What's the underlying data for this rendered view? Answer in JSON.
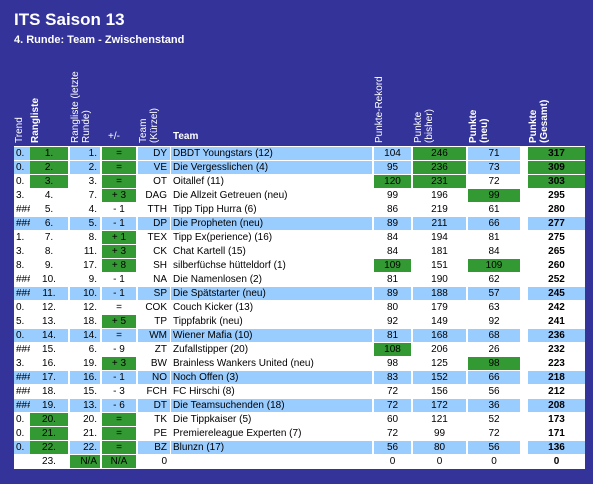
{
  "header": {
    "title": "ITS Saison 13",
    "subtitle": "4. Runde: Team - Zwischenstand"
  },
  "table": {
    "columns": [
      "Trend",
      "Rangliste",
      "Rangliste (letzte Runde)",
      "+/-",
      "Team (Kürzel)",
      "Team",
      "Punkte-Rekord",
      "Punkte (bisher)",
      "Punkte (neu)",
      "Punkte (Gesamt)"
    ],
    "rows": [
      [
        "0.",
        "1.",
        "1.",
        "=",
        "DY",
        "DBDT Youngstars (12)",
        104,
        246,
        71,
        317
      ],
      [
        "0.",
        "2.",
        "2.",
        "=",
        "VE",
        "Die Vergesslichen (4)",
        95,
        236,
        73,
        309
      ],
      [
        "0.",
        "3.",
        "3.",
        "=",
        "OT",
        "Oitallef (11)",
        120,
        231,
        72,
        303
      ],
      [
        "3.",
        "4.",
        "7.",
        "+ 3",
        "DAG",
        "Die Allzeit Getreuen (neu)",
        99,
        196,
        99,
        295
      ],
      [
        "###",
        "5.",
        "4.",
        "- 1",
        "TTH",
        "Tipp Tipp Hurra (6)",
        86,
        219,
        61,
        280
      ],
      [
        "###",
        "6.",
        "5.",
        "- 1",
        "DP",
        "Die Propheten (neu)",
        89,
        211,
        66,
        277
      ],
      [
        "1.",
        "7.",
        "8.",
        "+ 1",
        "TEX",
        "Tipp Ex(perience) (16)",
        84,
        194,
        81,
        275
      ],
      [
        "3.",
        "8.",
        "11.",
        "+ 3",
        "CK",
        "Chat Kartell (15)",
        84,
        181,
        84,
        265
      ],
      [
        "8.",
        "9.",
        "17.",
        "+ 8",
        "SH",
        "silberfüchse hütteldorf (1)",
        109,
        151,
        109,
        260
      ],
      [
        "###",
        "10.",
        "9.",
        "- 1",
        "NA",
        "Die Namenlosen (2)",
        81,
        190,
        62,
        252
      ],
      [
        "###",
        "11.",
        "10.",
        "- 1",
        "SP",
        "Die Spätstarter (neu)",
        89,
        188,
        57,
        245
      ],
      [
        "0.",
        "12.",
        "12.",
        "=",
        "COK",
        "Couch Kicker (13)",
        80,
        179,
        63,
        242
      ],
      [
        "5.",
        "13.",
        "18.",
        "+ 5",
        "TP",
        "Tippfabrik (neu)",
        92,
        149,
        92,
        241
      ],
      [
        "0.",
        "14.",
        "14.",
        "=",
        "WM",
        "Wiener Mafia (10)",
        81,
        168,
        68,
        236
      ],
      [
        "###",
        "15.",
        "6.",
        "- 9",
        "ZT",
        "Zufallstipper (20)",
        108,
        206,
        26,
        232
      ],
      [
        "3.",
        "16.",
        "19.",
        "+ 3",
        "BW",
        "Brainless Wankers United (neu)",
        98,
        125,
        98,
        223
      ],
      [
        "###",
        "17.",
        "16.",
        "- 1",
        "NO",
        "Noch Offen (3)",
        83,
        152,
        66,
        218
      ],
      [
        "###",
        "18.",
        "15.",
        "- 3",
        "FCH",
        "FC Hirschi (8)",
        72,
        156,
        56,
        212
      ],
      [
        "###",
        "19.",
        "13.",
        "- 6",
        "DT",
        "Die Teamsuchenden (18)",
        72,
        172,
        36,
        208
      ],
      [
        "0.",
        "20.",
        "20.",
        "=",
        "TK",
        "Die Tippkaiser (5)",
        60,
        121,
        52,
        173
      ],
      [
        "0.",
        "21.",
        "21.",
        "=",
        "PE",
        "Premiereleague Experten (7)",
        72,
        99,
        72,
        171
      ],
      [
        "0.",
        "22.",
        "22.",
        "=",
        "BZ",
        "Blunzn (17)",
        56,
        80,
        56,
        136
      ],
      [
        "",
        "23.",
        "N/A",
        "N/A",
        "0",
        "",
        0,
        0,
        0,
        0
      ]
    ]
  }
}
